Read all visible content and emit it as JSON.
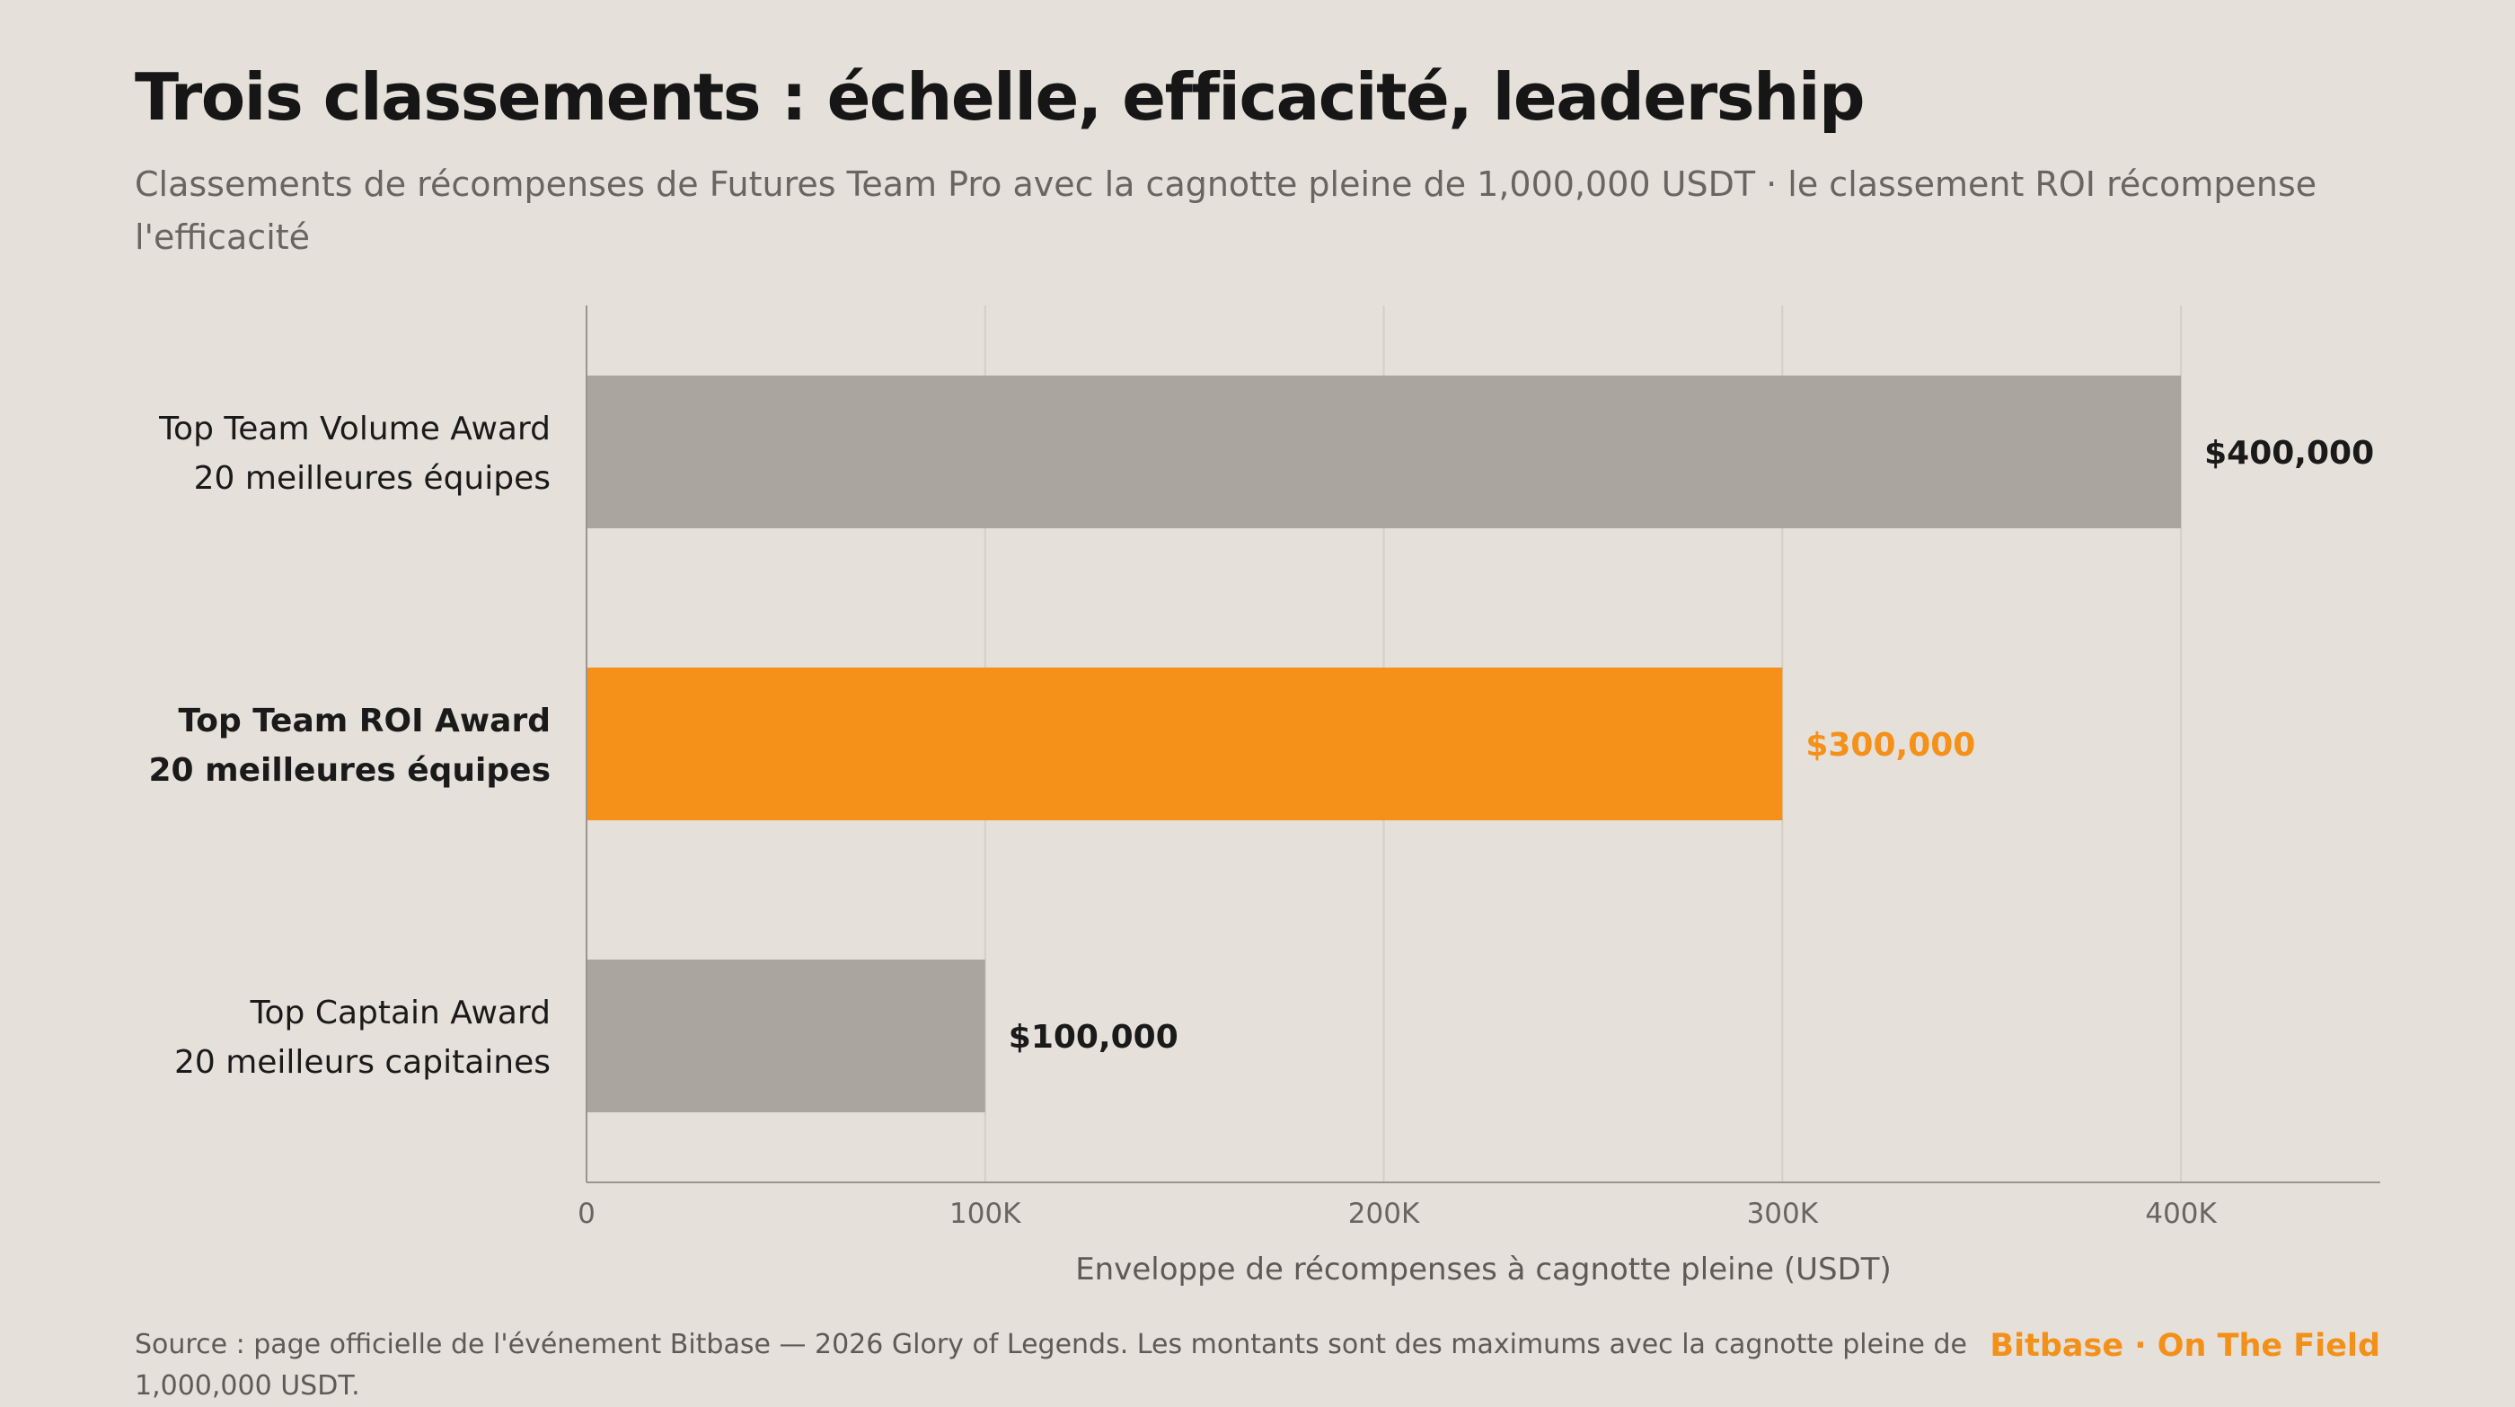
{
  "title": "Trois classements : échelle, efficacité, leadership",
  "subtitle": "Classements de récompenses de Futures Team Pro avec la cagnotte pleine de 1,000,000 USDT · le classement ROI récompense l'efficacité",
  "footer": {
    "source": "Source : page officielle de l'événement Bitbase — 2026 Glory of Legends. Les montants sont des maximums avec la cagnotte pleine de 1,000,000 USDT.",
    "brand": "Bitbase · On The Field"
  },
  "colors": {
    "accent": "#f59019",
    "neutral_bar": "#aaa59f",
    "background": "#e5e0da",
    "grid": "#d4cfc9",
    "axis": "#9a958f"
  },
  "chart_data": {
    "type": "bar",
    "orientation": "horizontal",
    "categories": [
      {
        "name": "Top Team Volume Award",
        "sub": "20 meilleures équipes",
        "highlight": false
      },
      {
        "name": "Top Team ROI Award",
        "sub": "20 meilleures équipes",
        "highlight": true
      },
      {
        "name": "Top Captain Award",
        "sub": "20 meilleurs capitaines",
        "highlight": false
      }
    ],
    "values": [
      400000,
      300000,
      100000
    ],
    "value_labels": [
      "$400,000",
      "$300,000",
      "$100,000"
    ],
    "xlim": [
      0,
      450000
    ],
    "xticks": [
      0,
      100000,
      200000,
      300000,
      400000
    ],
    "xtick_labels": [
      "0",
      "100K",
      "200K",
      "300K",
      "400K"
    ],
    "xlabel": "Enveloppe de récompenses à cagnotte pleine (USDT)",
    "grid": "vertical"
  }
}
